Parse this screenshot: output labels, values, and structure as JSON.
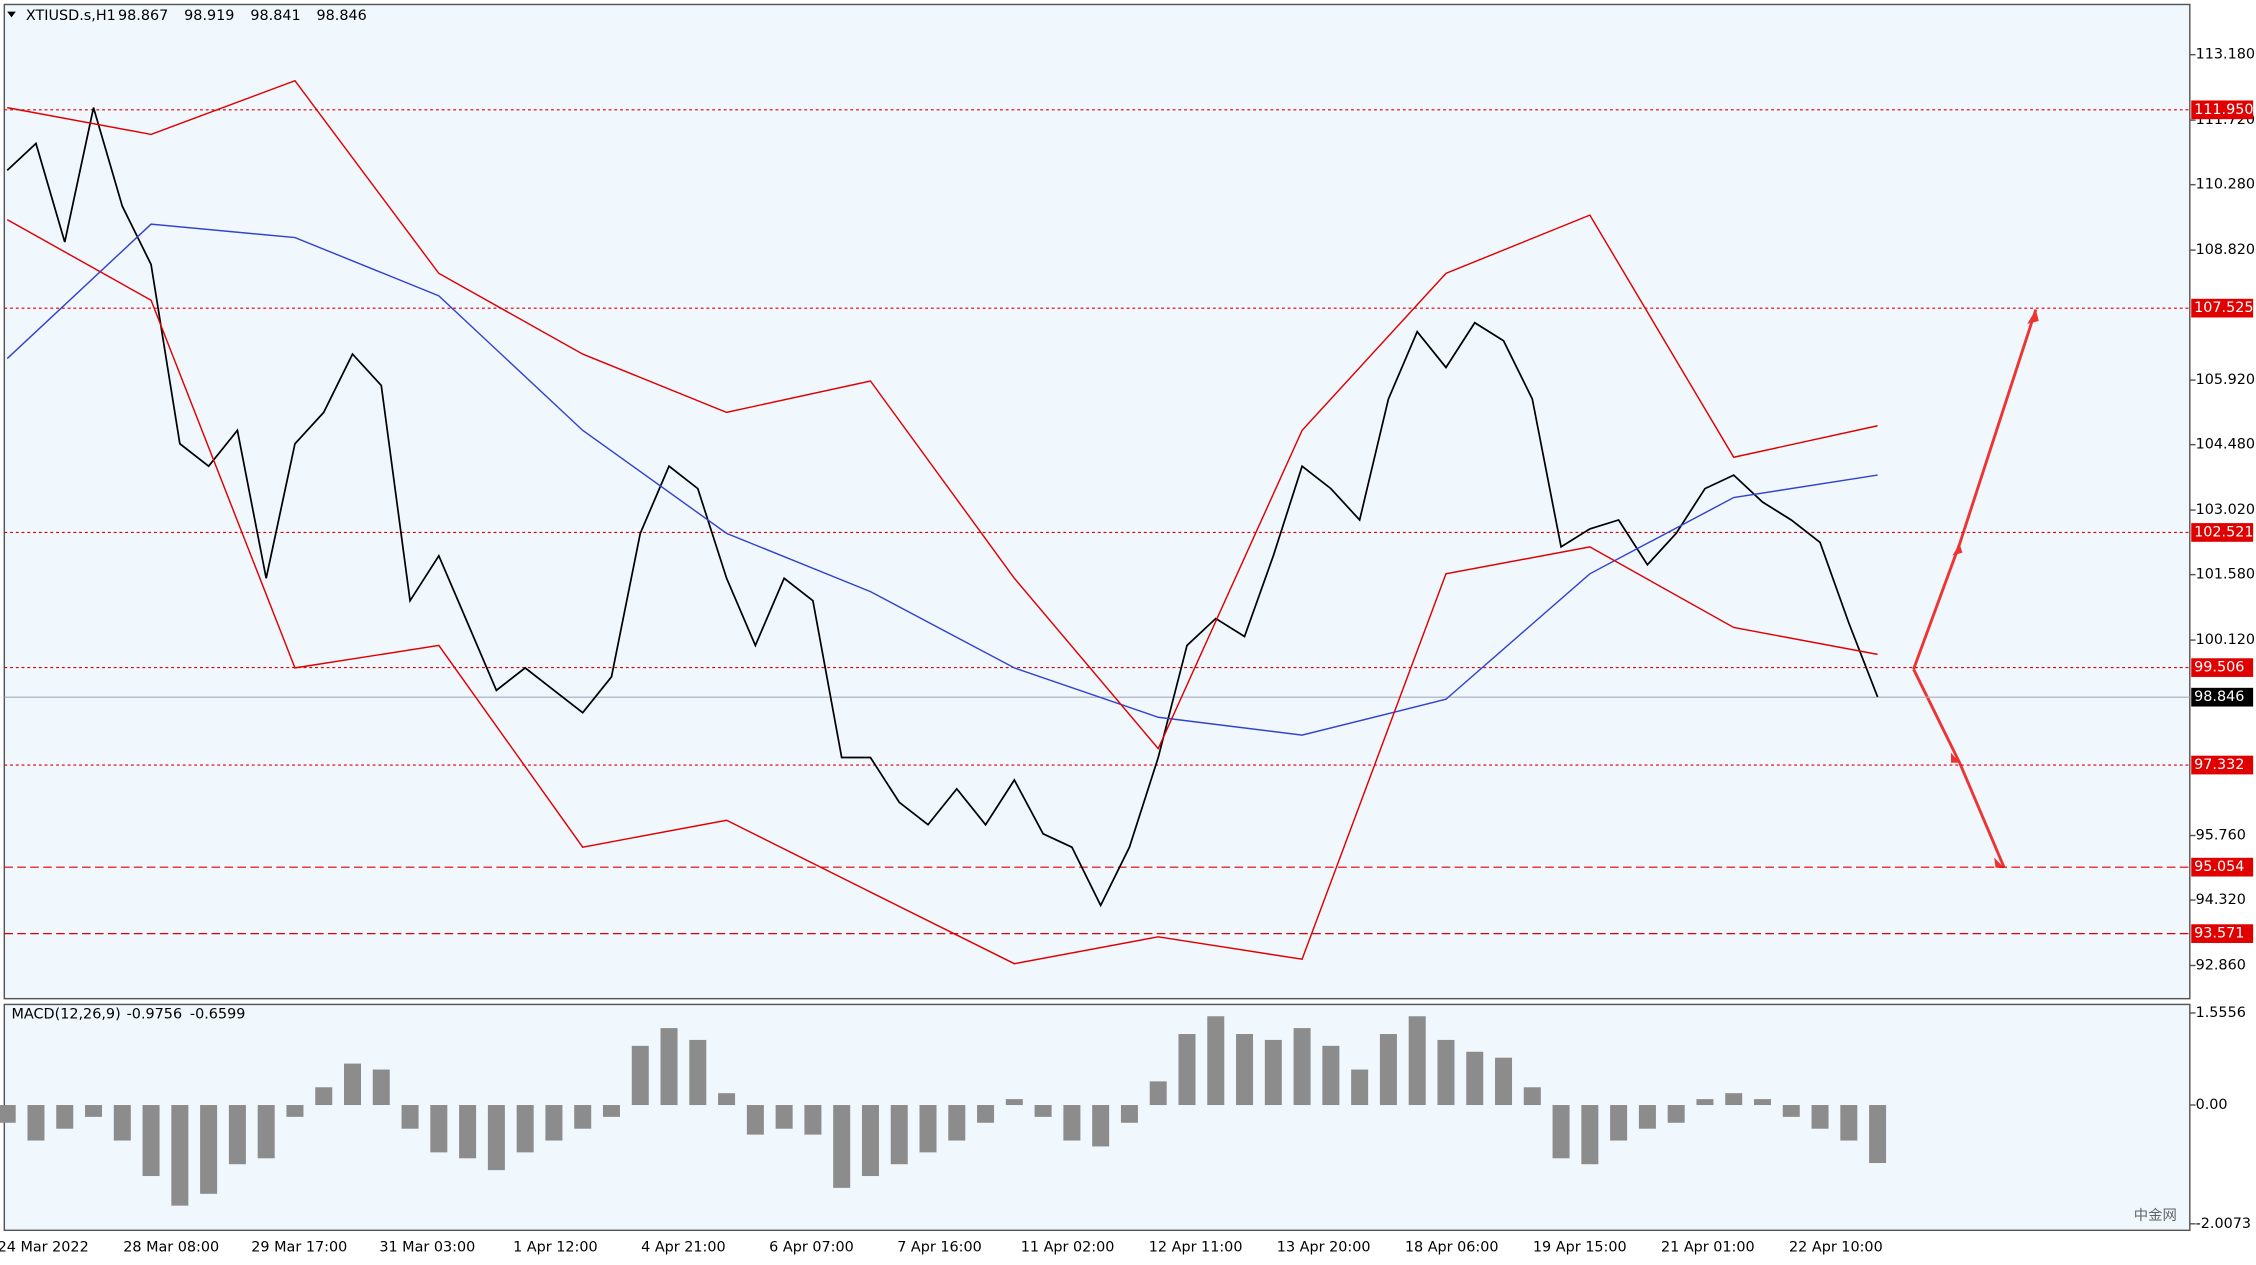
{
  "chart_data": [
    {
      "type": "line",
      "title": "XTIUSD.s,H1",
      "ohlc": [
        98.867,
        98.919,
        98.841,
        98.846
      ],
      "ylim": [
        92.12,
        114.3
      ],
      "yticks": [
        {
          "value": 113.18,
          "label": "113.180"
        },
        {
          "value": 111.72,
          "label": "111.720"
        },
        {
          "value": 110.28,
          "label": "110.280"
        },
        {
          "value": 108.82,
          "label": "108.820"
        },
        {
          "value": 105.92,
          "label": "105.920"
        },
        {
          "value": 104.48,
          "label": "104.480"
        },
        {
          "value": 103.02,
          "label": "103.020"
        },
        {
          "value": 101.58,
          "label": "101.580"
        },
        {
          "value": 100.12,
          "label": "100.120"
        },
        {
          "value": 95.76,
          "label": "95.760"
        },
        {
          "value": 94.32,
          "label": "94.320"
        },
        {
          "value": 92.86,
          "label": "92.860"
        }
      ],
      "levels": [
        {
          "value": 111.95,
          "label": "111.950"
        },
        107.525,
        102.521,
        99.506,
        97.332,
        95.054,
        93.571
      ],
      "level_color": "#e00000",
      "current_price": 98.846,
      "x_labels": [
        "24 Mar 2022",
        "28 Mar 08:00",
        "29 Mar 17:00",
        "31 Mar 03:00",
        "1 Apr 12:00",
        "4 Apr 21:00",
        "6 Apr 07:00",
        "7 Apr 16:00",
        "11 Apr 02:00",
        "12 Apr 11:00",
        "13 Apr 20:00",
        "18 Apr 06:00",
        "19 Apr 15:00",
        "21 Apr 01:00",
        "22 Apr 10:00"
      ],
      "series": [
        {
          "color": "#000000",
          "values": [
            110.6,
            111.2,
            109.0,
            112.0,
            109.8,
            108.5,
            104.5,
            104.0,
            104.8,
            101.5,
            104.5,
            105.2,
            106.5,
            105.8,
            101.0,
            102.0,
            100.5,
            99.0,
            99.5,
            99.0,
            98.5,
            99.3,
            102.5,
            104.0,
            103.5,
            101.5,
            100.0,
            101.5,
            101.0,
            97.5,
            97.5,
            96.5,
            96.0,
            96.8,
            96.0,
            97.0,
            95.8,
            95.5,
            94.2,
            95.5,
            97.5,
            100.0,
            100.6,
            100.2,
            102.0,
            104.0,
            103.5,
            102.8,
            105.5,
            107.0,
            106.2,
            107.2,
            106.8,
            105.5,
            102.2,
            102.6,
            102.8,
            101.8,
            102.5,
            103.5,
            103.8,
            103.2,
            102.8,
            102.3,
            100.5,
            98.85
          ]
        },
        {
          "color": "#3344cc",
          "values": [
            106.4,
            109.4,
            109.1,
            107.8,
            104.8,
            102.5,
            101.2,
            99.5,
            98.4,
            98.0,
            98.8,
            101.6,
            103.3,
            103.8
          ]
        },
        {
          "color": "#e00000",
          "values": [
            112.0,
            111.4,
            112.6,
            108.3,
            106.5,
            105.2,
            105.9,
            101.5,
            97.7,
            104.8,
            108.3,
            109.6,
            104.2,
            104.9
          ]
        },
        {
          "color": "#e00000",
          "values": [
            109.5,
            107.7,
            99.5,
            100.0,
            95.5,
            96.1,
            94.5,
            92.9,
            93.5,
            93.0,
            101.6,
            102.2,
            100.4,
            99.8
          ]
        }
      ]
    },
    {
      "type": "bar",
      "title": "MACD(12,26,9)",
      "readings": [
        -0.9756,
        -0.6599
      ],
      "color": "#8c8c8c",
      "ylim": [
        -2.117,
        1.7
      ],
      "yticks": [
        1.5556,
        {
          "value": 0,
          "label": "0.00"
        },
        -2.0073
      ],
      "values": [
        -0.3,
        -0.6,
        -0.4,
        -0.2,
        -0.6,
        -1.2,
        -1.7,
        -1.5,
        -1.0,
        -0.9,
        -0.2,
        0.3,
        0.7,
        0.6,
        -0.4,
        -0.8,
        -0.9,
        -1.1,
        -0.8,
        -0.6,
        -0.4,
        -0.2,
        1.0,
        1.3,
        1.1,
        0.2,
        -0.5,
        -0.4,
        -0.5,
        -1.4,
        -1.2,
        -1.0,
        -0.8,
        -0.6,
        -0.3,
        0.1,
        -0.2,
        -0.6,
        -0.7,
        -0.3,
        0.4,
        1.2,
        1.5,
        1.2,
        1.1,
        1.3,
        1.0,
        0.6,
        1.2,
        1.5,
        1.1,
        0.9,
        0.8,
        0.3,
        -0.9,
        -1.0,
        -0.6,
        -0.4,
        -0.3,
        0.1,
        0.2,
        0.1,
        -0.2,
        -0.4,
        -0.6,
        -0.98
      ]
    }
  ],
  "watermark": "中金网"
}
